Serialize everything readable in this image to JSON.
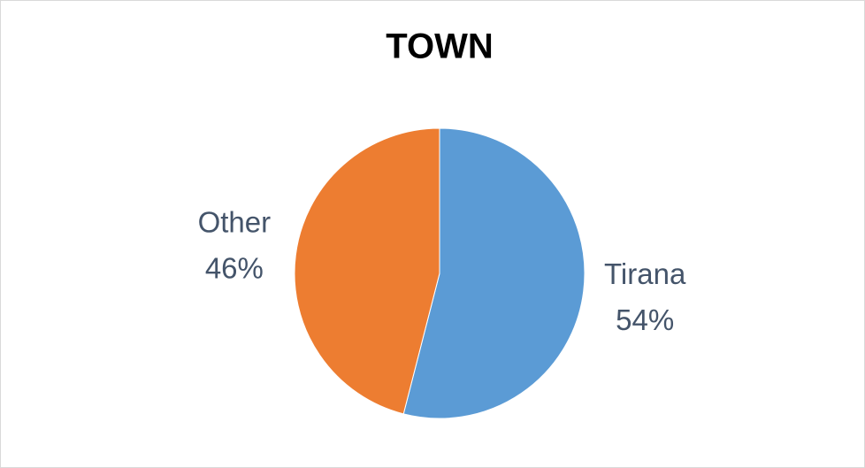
{
  "chart_data": {
    "type": "pie",
    "title": "TOWN",
    "categories": [
      "Tirana",
      "Other"
    ],
    "values": [
      54,
      46
    ],
    "value_labels": [
      "54%",
      "46%"
    ],
    "colors": [
      "#5b9bd5",
      "#ed7d31"
    ]
  }
}
